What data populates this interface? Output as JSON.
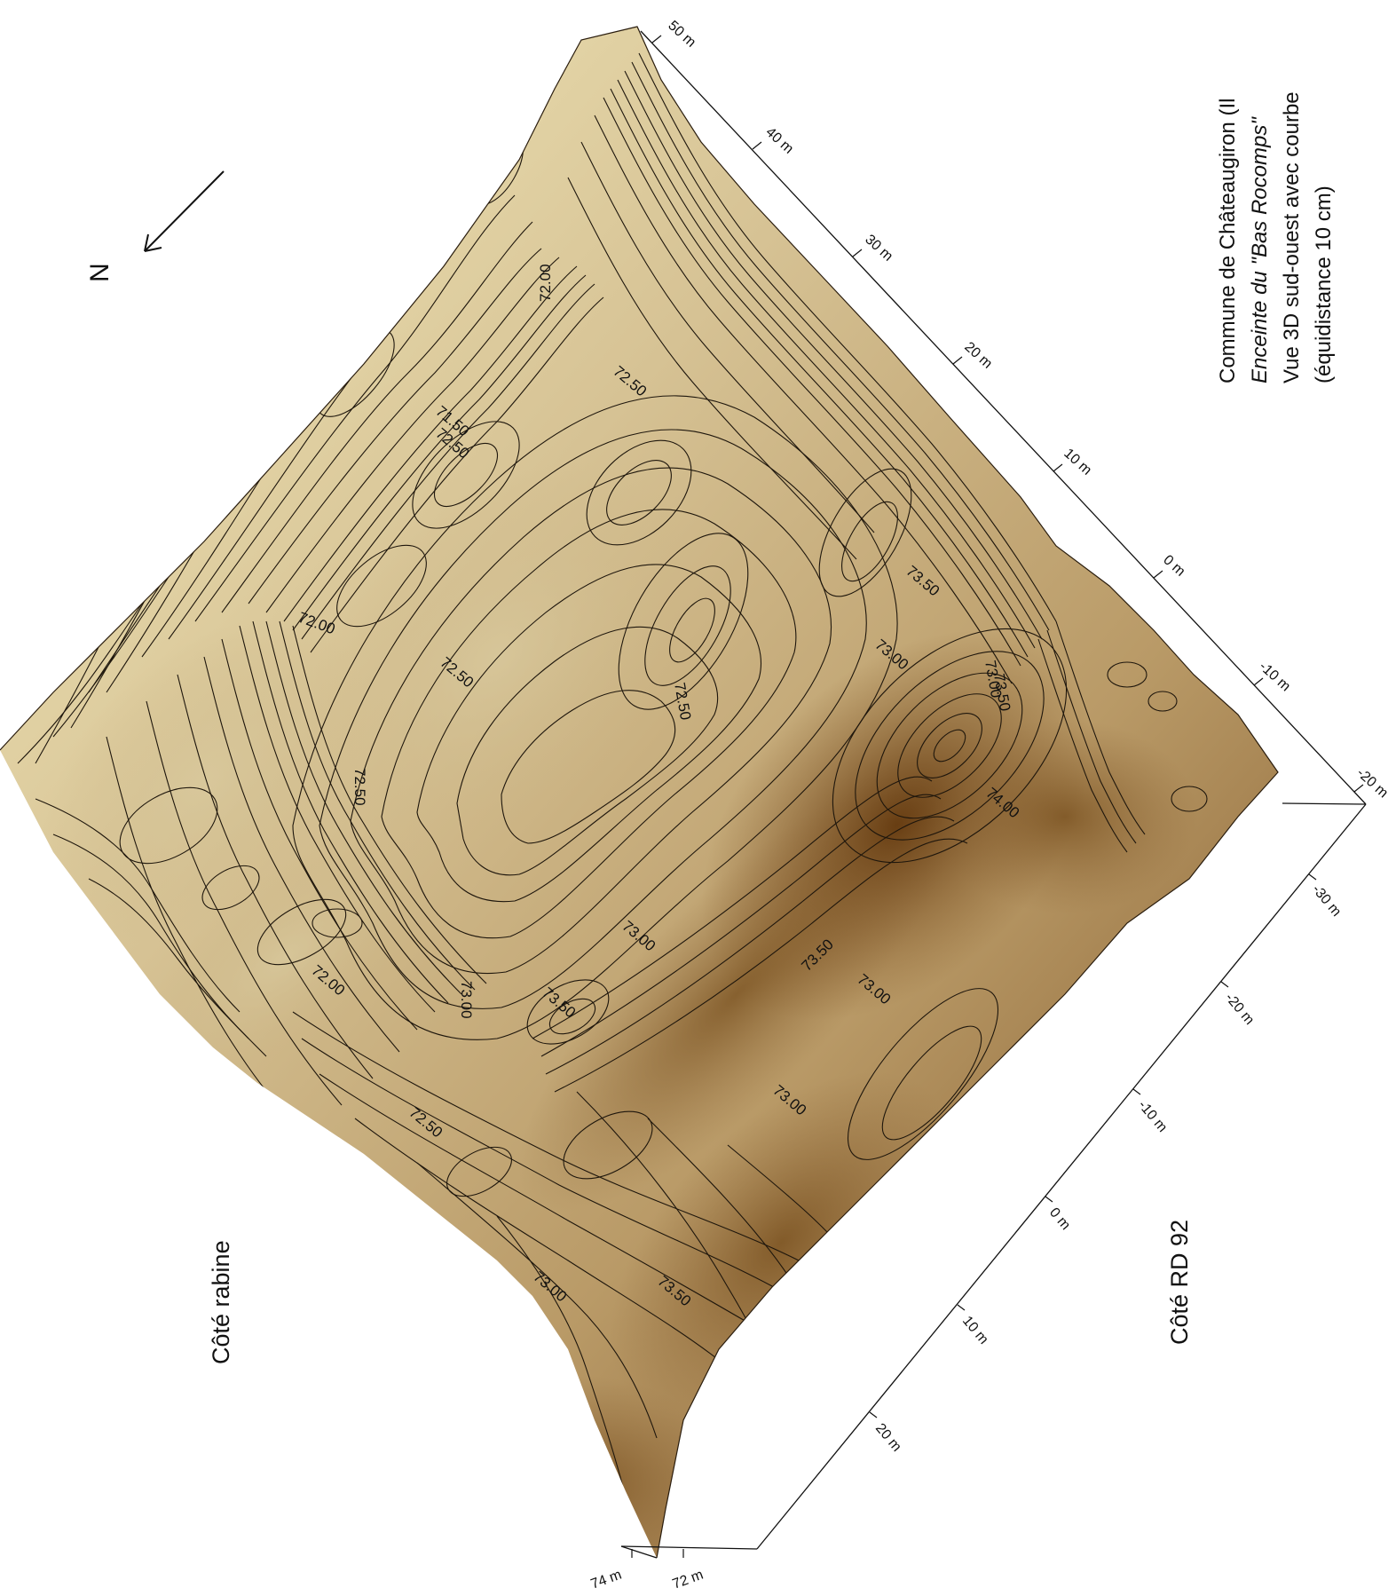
{
  "title": {
    "line1": "Commune de Châteaugiron (Il",
    "line2": "Enceinte du \"Bas Rocomps\"",
    "line3": "Vue 3D sud-ouest avec courbe",
    "line4": "(équidistance 10 cm)"
  },
  "north_label": "N",
  "sides": {
    "left": "Côté rabine",
    "right": "Côté RD 92"
  },
  "colors": {
    "low": "#f6eec0",
    "mid": "#b99a67",
    "high": "#6b3d10",
    "contour": "#1e160c"
  },
  "axes": {
    "upper_ticks": [
      "50 m",
      "40 m",
      "30 m",
      "20 m",
      "10 m",
      "0 m",
      "-10 m",
      "-20 m"
    ],
    "lower_ticks": [
      "-30 m",
      "-20 m",
      "-10 m",
      "0 m",
      "10 m",
      "20 m"
    ],
    "elevation_ticks": [
      "74 m",
      "72 m"
    ]
  },
  "contour_labels": [
    "72.00",
    "71.50",
    "72.50",
    "72.50",
    "72.00",
    "72.50",
    "72.50",
    "73.50",
    "73.00",
    "73.50",
    "73.00",
    "74.00",
    "72.50",
    "73.00",
    "73.50",
    "73.50",
    "73.00",
    "72.00",
    "73.00",
    "73.00",
    "72.50",
    "73.00",
    "73.50"
  ]
}
